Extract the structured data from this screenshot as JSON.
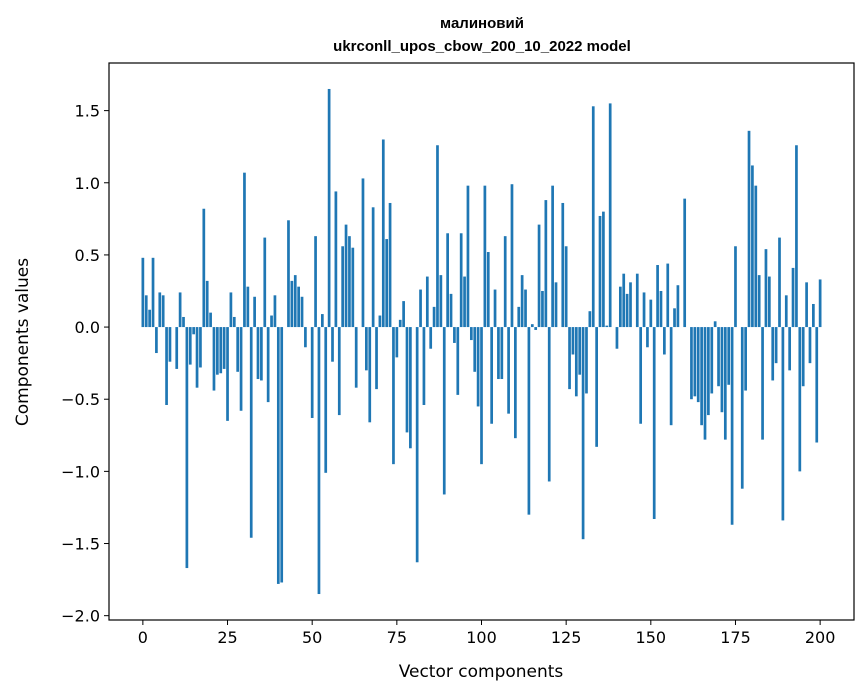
{
  "chart_data": {
    "type": "bar",
    "title_line1": "малиновий",
    "title_line2": "ukrconll_upos_cbow_200_10_2022 model",
    "xlabel": "Vector components",
    "ylabel": "Components values",
    "xlim": [
      -10,
      210
    ],
    "ylim": [
      -2.03,
      1.83
    ],
    "x_ticks": [
      0,
      25,
      50,
      75,
      100,
      125,
      150,
      175,
      200
    ],
    "y_ticks": [
      -2.0,
      -1.5,
      -1.0,
      -0.5,
      0.0,
      0.5,
      1.0,
      1.5
    ],
    "bar_color": "#1f77b4",
    "grid": false,
    "values": [
      0.48,
      0.22,
      0.12,
      0.48,
      -0.18,
      0.24,
      0.22,
      -0.54,
      -0.24,
      0.0,
      -0.29,
      0.24,
      0.07,
      -1.67,
      -0.26,
      -0.05,
      -0.42,
      -0.28,
      0.82,
      0.32,
      0.1,
      -0.44,
      -0.33,
      -0.32,
      -0.29,
      -0.65,
      0.24,
      0.07,
      -0.31,
      -0.58,
      1.07,
      0.28,
      -1.46,
      0.21,
      -0.36,
      -0.37,
      0.62,
      -0.52,
      0.08,
      0.22,
      -1.78,
      -1.77,
      0.0,
      0.74,
      0.32,
      0.36,
      0.28,
      0.21,
      -0.14,
      0.0,
      -0.63,
      0.63,
      -1.85,
      0.09,
      -1.01,
      1.65,
      -0.24,
      0.94,
      -0.61,
      0.56,
      0.71,
      0.63,
      0.55,
      -0.42,
      0.0,
      1.03,
      -0.3,
      -0.66,
      0.83,
      -0.43,
      0.08,
      1.3,
      0.61,
      0.86,
      -0.95,
      -0.21,
      0.05,
      0.18,
      -0.73,
      -0.84,
      0.0,
      -1.63,
      0.26,
      -0.54,
      0.35,
      -0.15,
      0.14,
      1.26,
      0.36,
      -1.16,
      0.65,
      0.23,
      -0.11,
      -0.47,
      0.65,
      0.35,
      0.98,
      -0.09,
      -0.31,
      -0.55,
      -0.95,
      0.98,
      0.52,
      -0.67,
      0.26,
      -0.36,
      -0.36,
      0.63,
      -0.6,
      0.99,
      -0.77,
      0.14,
      0.36,
      0.26,
      -1.3,
      0.02,
      -0.02,
      0.71,
      0.25,
      0.88,
      -1.07,
      0.98,
      0.31,
      0.0,
      0.86,
      0.56,
      -0.43,
      -0.19,
      -0.48,
      -0.33,
      -1.47,
      -0.46,
      0.11,
      1.53,
      -0.83,
      0.77,
      0.8,
      0.01,
      1.55,
      0.0,
      -0.15,
      0.28,
      0.37,
      0.23,
      0.31,
      0.0,
      0.37,
      -0.67,
      0.24,
      -0.14,
      0.19,
      -1.33,
      0.43,
      0.25,
      -0.19,
      0.44,
      -0.68,
      0.13,
      0.29,
      0.0,
      0.89,
      0.0,
      -0.5,
      -0.48,
      -0.52,
      -0.68,
      -0.78,
      -0.61,
      -0.46,
      0.04,
      -0.41,
      -0.59,
      -0.78,
      -0.4,
      -1.37,
      0.56,
      0.0,
      -1.12,
      -0.44,
      1.36,
      1.12,
      0.98,
      0.36,
      -0.78,
      0.54,
      0.35,
      -0.37,
      -0.25,
      0.62,
      -1.34,
      0.22,
      -0.3,
      0.41,
      1.26,
      -1.0,
      -0.41,
      0.31,
      -0.25,
      0.16,
      -0.8,
      0.33
    ]
  }
}
